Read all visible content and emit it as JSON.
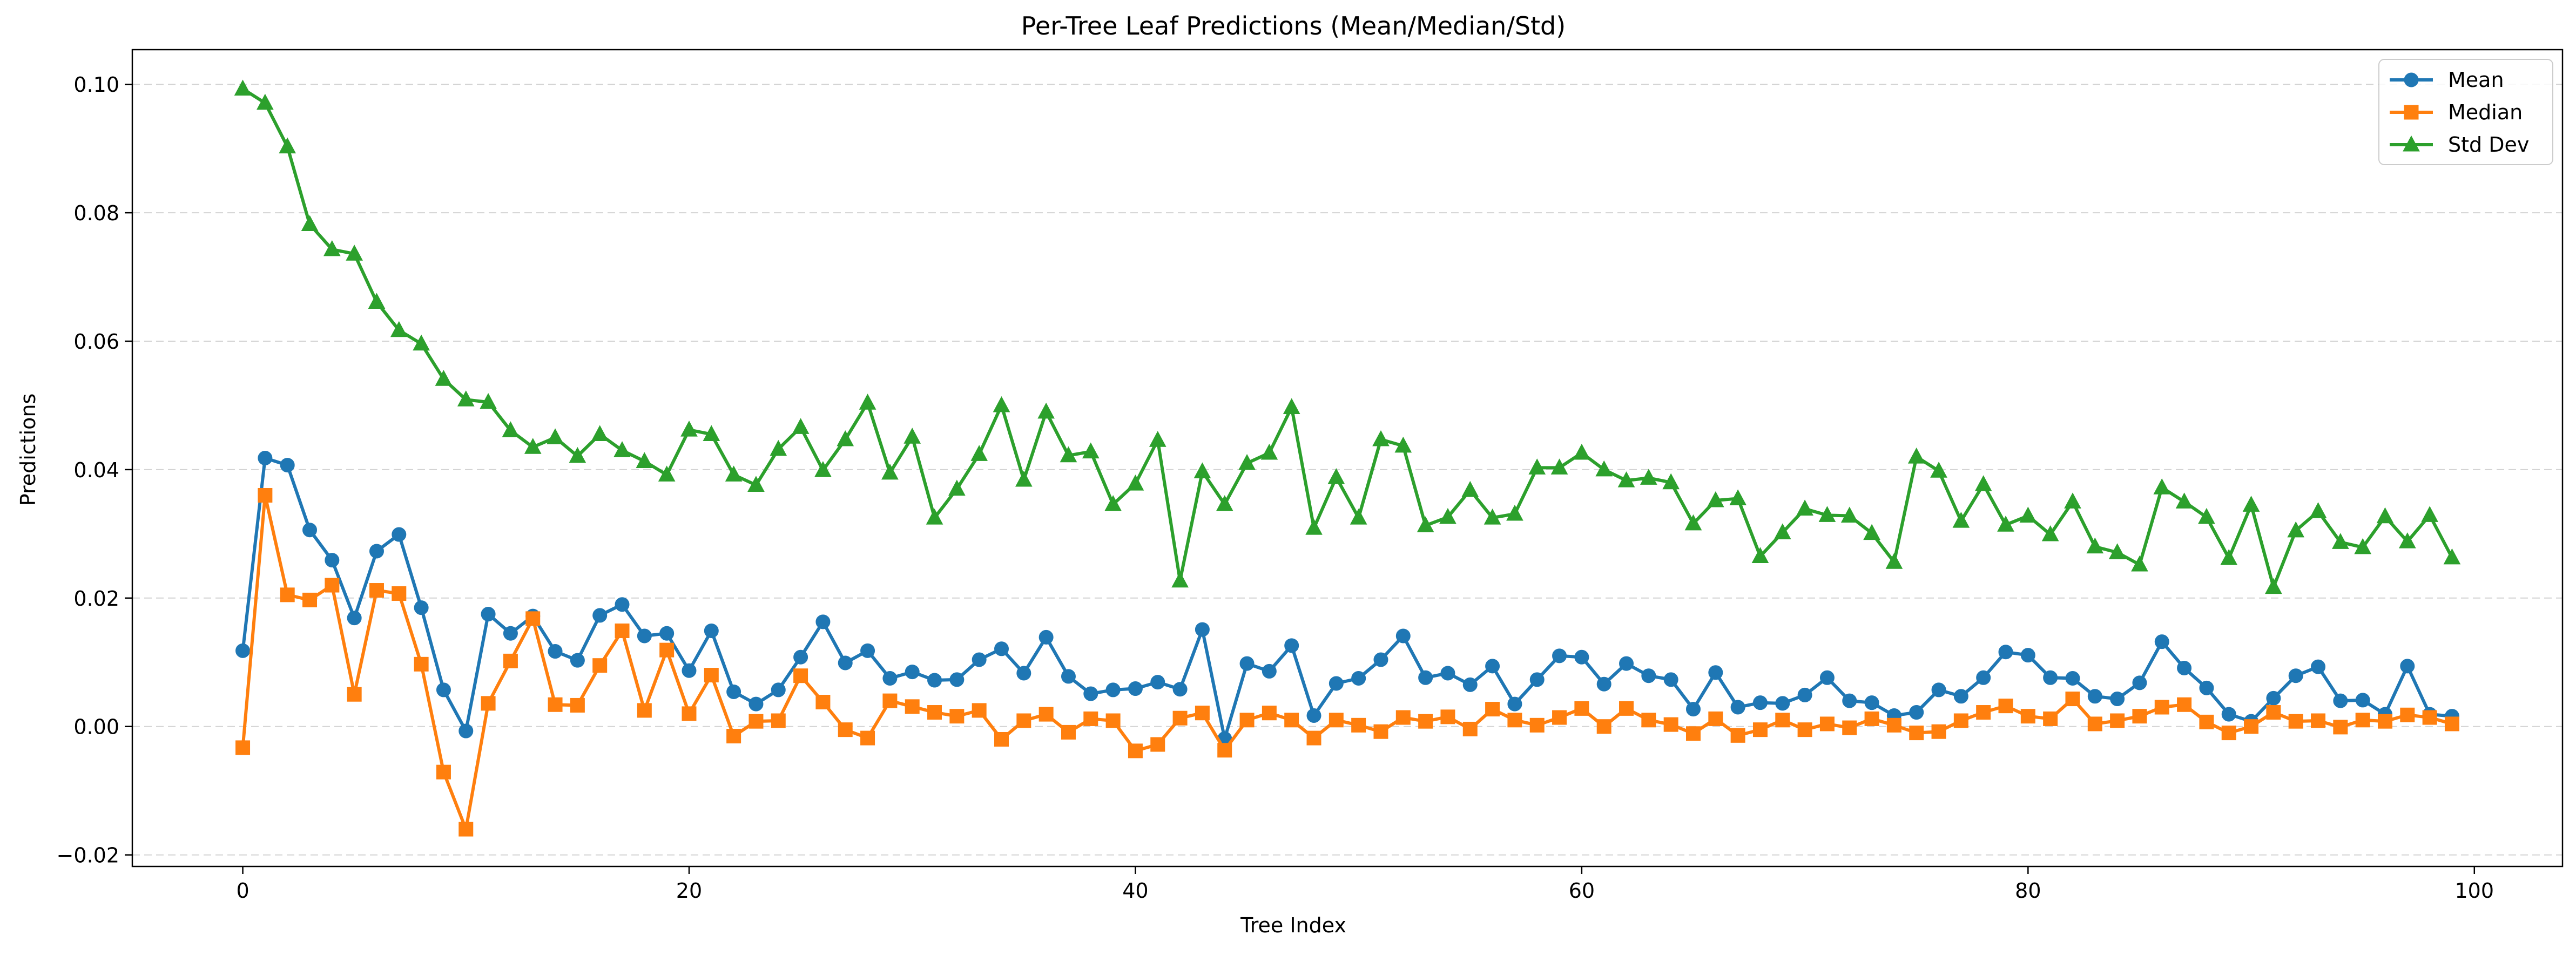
{
  "chart_data": {
    "type": "line",
    "title": "Per-Tree Leaf Predictions (Mean/Median/Std)",
    "xlabel": "Tree Index",
    "ylabel": "Predictions",
    "xlim": [
      -4.95,
      103.95
    ],
    "ylim": [
      -0.0218,
      0.1054
    ],
    "xticks": [
      0,
      20,
      40,
      60,
      80,
      100
    ],
    "xtick_labels": [
      "0",
      "20",
      "40",
      "60",
      "80",
      "100"
    ],
    "yticks": [
      -0.02,
      0.0,
      0.02,
      0.04,
      0.06,
      0.08,
      0.1
    ],
    "ytick_labels": [
      "−0.02",
      "0.00",
      "0.02",
      "0.04",
      "0.06",
      "0.08",
      "0.10"
    ],
    "grid": "y-dashed",
    "legend_position": "top-right",
    "x": [
      0,
      1,
      2,
      3,
      4,
      5,
      6,
      7,
      8,
      9,
      10,
      11,
      12,
      13,
      14,
      15,
      16,
      17,
      18,
      19,
      20,
      21,
      22,
      23,
      24,
      25,
      26,
      27,
      28,
      29,
      30,
      31,
      32,
      33,
      34,
      35,
      36,
      37,
      38,
      39,
      40,
      41,
      42,
      43,
      44,
      45,
      46,
      47,
      48,
      49,
      50,
      51,
      52,
      53,
      54,
      55,
      56,
      57,
      58,
      59,
      60,
      61,
      62,
      63,
      64,
      65,
      66,
      67,
      68,
      69,
      70,
      71,
      72,
      73,
      74,
      75,
      76,
      77,
      78,
      79,
      80,
      81,
      82,
      83,
      84,
      85,
      86,
      87,
      88,
      89,
      90,
      91,
      92,
      93,
      94,
      95,
      96,
      97,
      98,
      99
    ],
    "series": [
      {
        "name": "Mean",
        "color": "#1f77b4",
        "marker": "circle",
        "values": [
          0.0118,
          0.0418,
          0.0407,
          0.0306,
          0.0259,
          0.0169,
          0.0273,
          0.0299,
          0.0185,
          0.0057,
          -0.0007,
          0.0175,
          0.0145,
          0.0172,
          0.0117,
          0.0103,
          0.0173,
          0.019,
          0.0141,
          0.0145,
          0.0087,
          0.0149,
          0.0054,
          0.0035,
          0.0057,
          0.0108,
          0.0163,
          0.0099,
          0.0118,
          0.0075,
          0.0085,
          0.0072,
          0.0073,
          0.0104,
          0.0121,
          0.0083,
          0.0139,
          0.0078,
          0.0051,
          0.0057,
          0.0059,
          0.0069,
          0.0058,
          0.0151,
          -0.0019,
          0.0098,
          0.0086,
          0.0126,
          0.0017,
          0.0067,
          0.0075,
          0.0104,
          0.0141,
          0.0076,
          0.0083,
          0.0065,
          0.0094,
          0.0035,
          0.0073,
          0.011,
          0.0108,
          0.0066,
          0.0098,
          0.0079,
          0.0073,
          0.0027,
          0.0084,
          0.003,
          0.0037,
          0.0036,
          0.0049,
          0.0076,
          0.004,
          0.0037,
          0.0017,
          0.0022,
          0.0057,
          0.0047,
          0.0076,
          0.0116,
          0.0111,
          0.0076,
          0.0075,
          0.0047,
          0.0043,
          0.0068,
          0.0132,
          0.0091,
          0.006,
          0.0019,
          0.0008,
          0.0044,
          0.0079,
          0.0093,
          0.004,
          0.0041,
          0.0019,
          0.0094,
          0.0019,
          0.0016
        ]
      },
      {
        "name": "Median",
        "color": "#ff7f0e",
        "marker": "square",
        "values": [
          -0.0033,
          0.036,
          0.0205,
          0.0197,
          0.022,
          0.005,
          0.0212,
          0.0207,
          0.0097,
          -0.0071,
          -0.016,
          0.0036,
          0.0102,
          0.0168,
          0.0034,
          0.0033,
          0.0095,
          0.0149,
          0.0025,
          0.0119,
          0.002,
          0.008,
          -0.0015,
          0.0008,
          0.0009,
          0.0079,
          0.0038,
          -0.0005,
          -0.0018,
          0.004,
          0.0031,
          0.0022,
          0.0016,
          0.0025,
          -0.002,
          0.0009,
          0.0019,
          -0.0009,
          0.0012,
          0.0009,
          -0.0038,
          -0.0028,
          0.0013,
          0.0021,
          -0.0037,
          0.001,
          0.0021,
          0.001,
          -0.0018,
          0.001,
          0.0002,
          -0.0008,
          0.0014,
          0.0008,
          0.0015,
          -0.0004,
          0.0027,
          0.001,
          0.0002,
          0.0014,
          0.0028,
          0.0,
          0.0028,
          0.001,
          0.0003,
          -0.0011,
          0.0012,
          -0.0014,
          -0.0005,
          0.001,
          -0.0005,
          0.0004,
          -0.0002,
          0.0012,
          0.0002,
          -0.001,
          -0.0008,
          0.0009,
          0.0022,
          0.0032,
          0.0016,
          0.0012,
          0.0043,
          0.0004,
          0.0009,
          0.0016,
          0.003,
          0.0034,
          0.0007,
          -0.001,
          0.0,
          0.0022,
          0.0008,
          0.0009,
          -0.0001,
          0.001,
          0.0008,
          0.0018,
          0.0014,
          0.0004
        ]
      },
      {
        "name": "Std Dev",
        "color": "#2ca02c",
        "marker": "triangle",
        "values": [
          0.0993,
          0.0971,
          0.0903,
          0.0782,
          0.0743,
          0.0736,
          0.0661,
          0.0617,
          0.0596,
          0.0541,
          0.0509,
          0.0505,
          0.0461,
          0.0435,
          0.045,
          0.0421,
          0.0455,
          0.043,
          0.0413,
          0.0392,
          0.0462,
          0.0455,
          0.0392,
          0.0376,
          0.0432,
          0.0466,
          0.0399,
          0.0447,
          0.0504,
          0.0395,
          0.0451,
          0.0325,
          0.037,
          0.0424,
          0.05,
          0.0384,
          0.049,
          0.0422,
          0.0428,
          0.0346,
          0.0378,
          0.0446,
          0.0227,
          0.0397,
          0.0346,
          0.041,
          0.0426,
          0.0497,
          0.0309,
          0.0388,
          0.0325,
          0.0447,
          0.0437,
          0.0313,
          0.0326,
          0.0368,
          0.0325,
          0.0331,
          0.0403,
          0.0403,
          0.0426,
          0.04,
          0.0383,
          0.0387,
          0.038,
          0.0316,
          0.0352,
          0.0355,
          0.0265,
          0.0302,
          0.0339,
          0.0329,
          0.0328,
          0.0301,
          0.0256,
          0.042,
          0.0398,
          0.032,
          0.0377,
          0.0314,
          0.0328,
          0.0299,
          0.035,
          0.028,
          0.0271,
          0.0252,
          0.0372,
          0.035,
          0.0326,
          0.0262,
          0.0345,
          0.0217,
          0.0305,
          0.0335,
          0.0287,
          0.0279,
          0.0327,
          0.0288,
          0.0329,
          0.0263
        ]
      }
    ]
  }
}
